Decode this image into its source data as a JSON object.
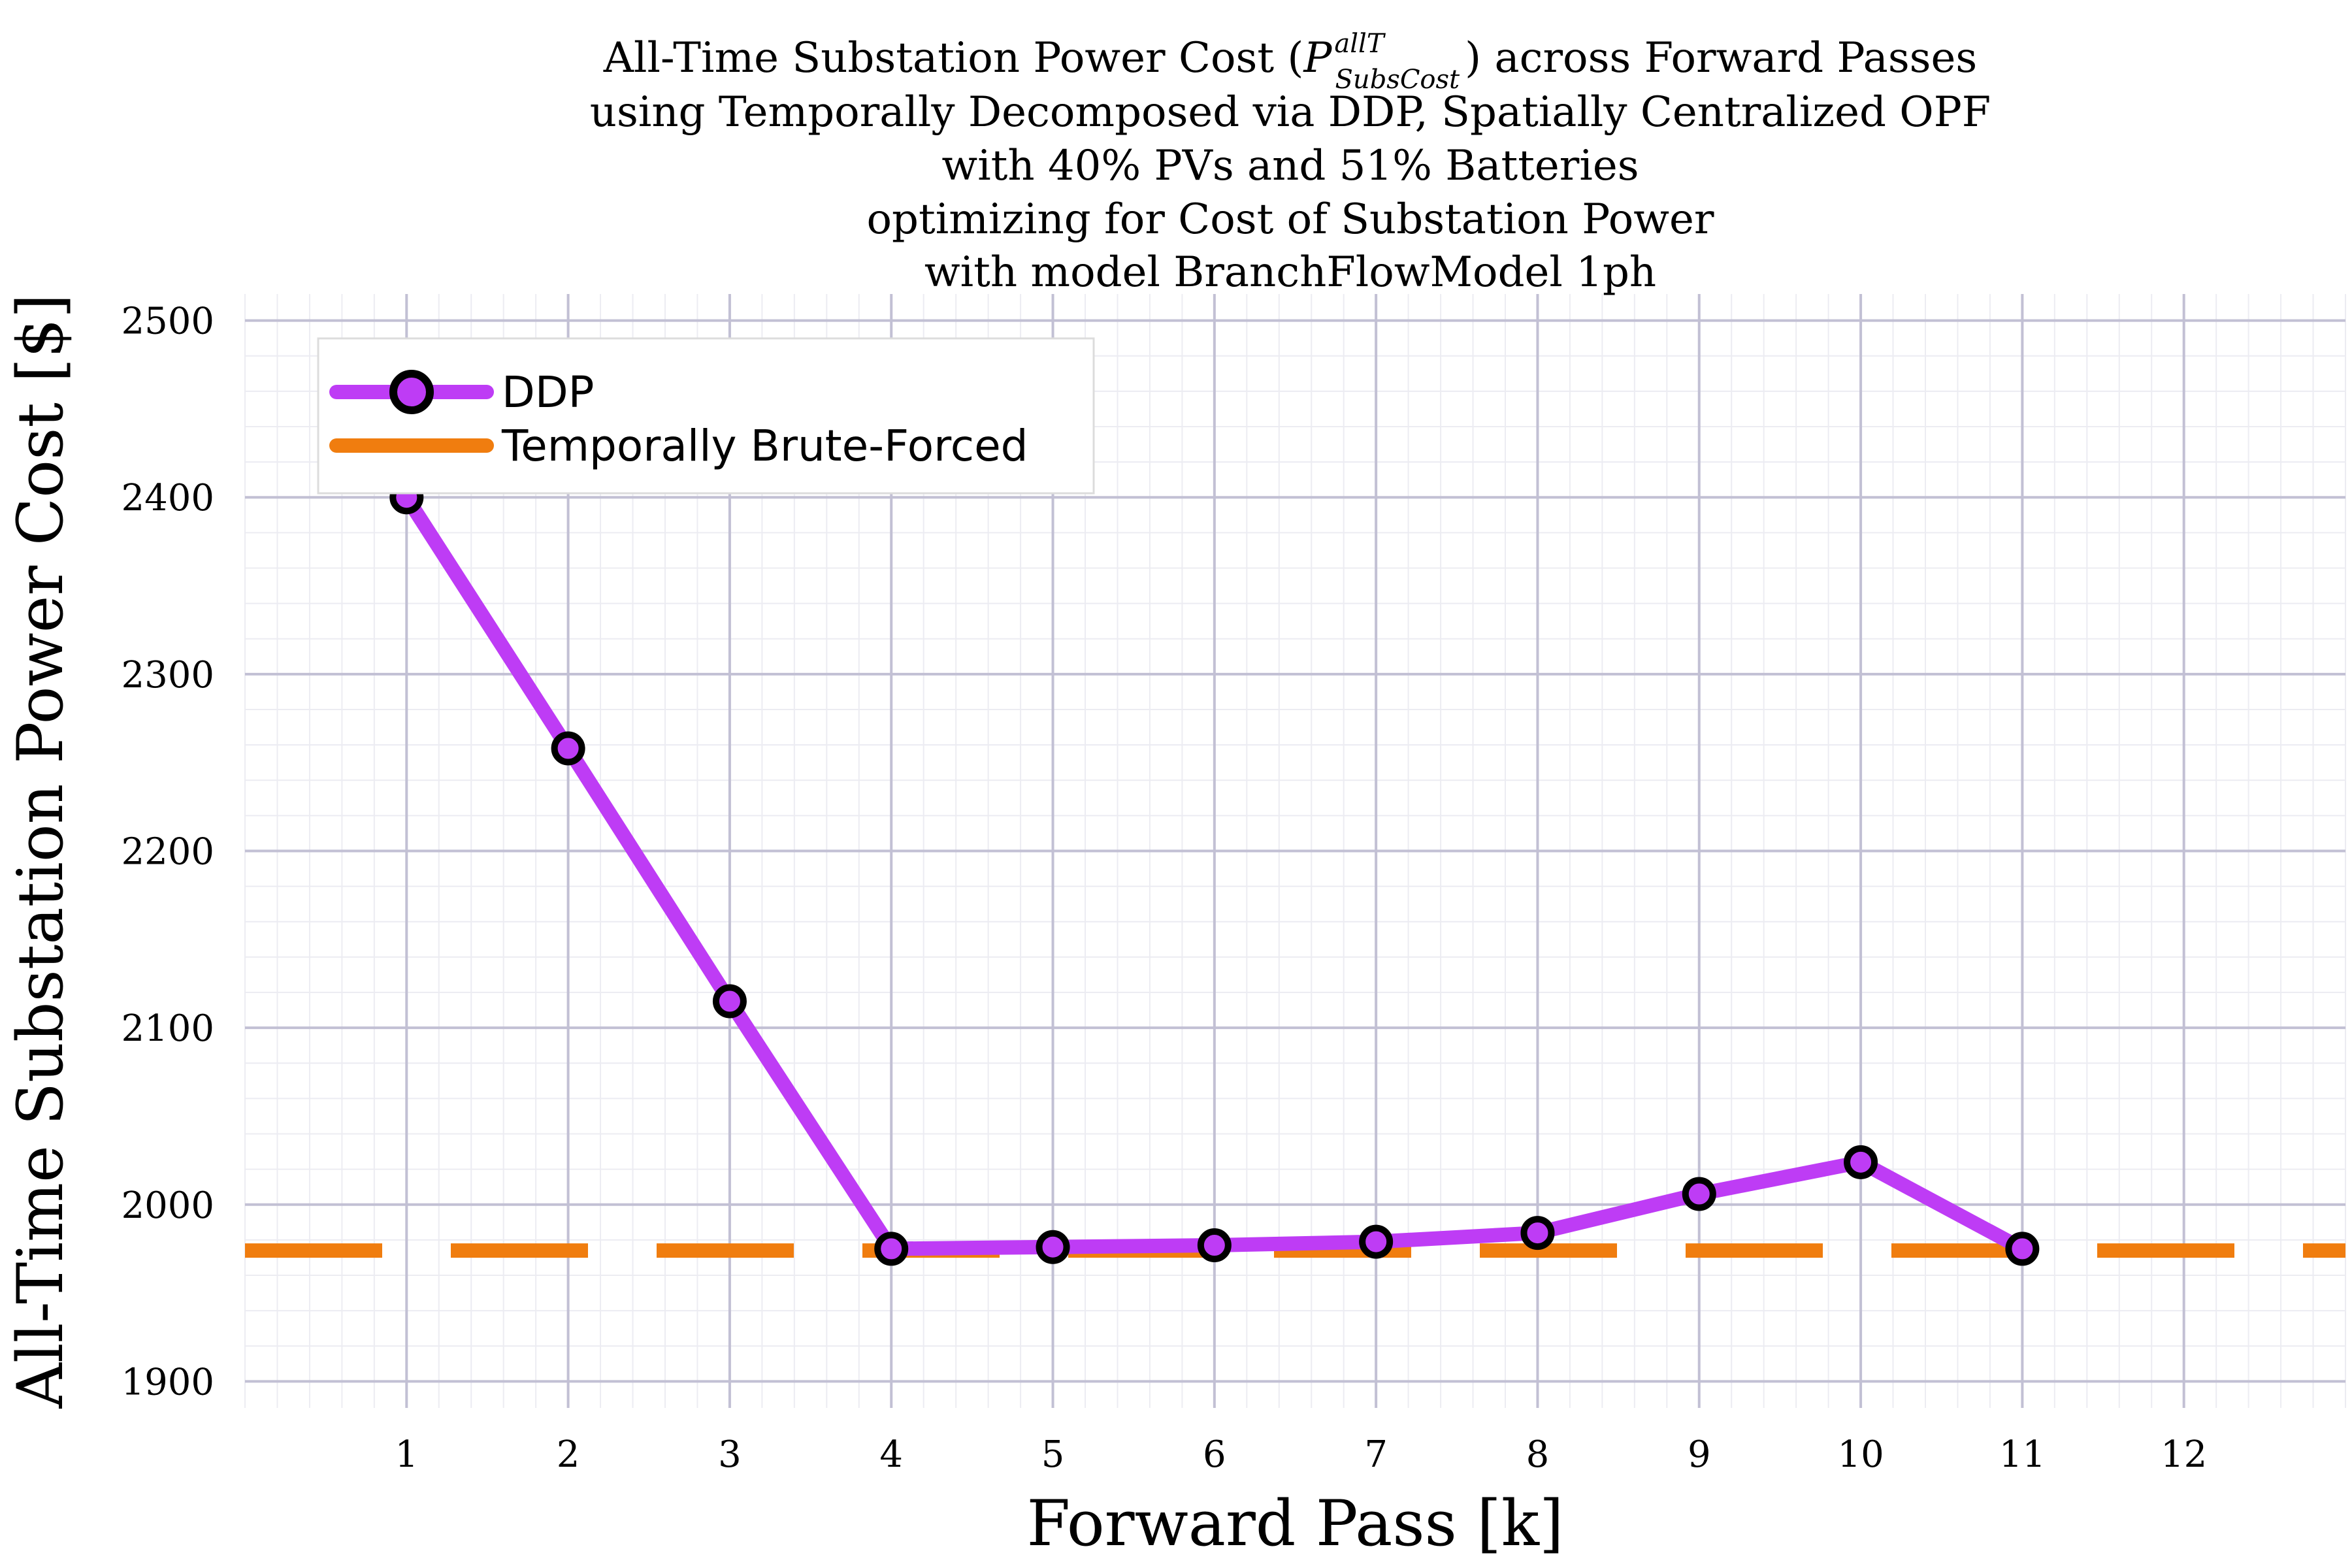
{
  "chart_data": {
    "type": "line",
    "title_lines": [
      "All-Time Substation Power Cost (",
      "using Temporally Decomposed via DDP, Spatially Centralized OPF",
      "with 40% PVs and 51% Batteries",
      "optimizing for Cost of Substation Power",
      "with model BranchFlowModel 1ph"
    ],
    "title_math": {
      "base": "P",
      "superscript": "allT",
      "subscript": "SubsCost",
      "suffix": ") across Forward Passes"
    },
    "xlabel": "Forward Pass [k]",
    "ylabel": "All-Time Substation Power Cost [$]",
    "xlim": [
      0,
      13
    ],
    "ylim": [
      1885,
      2515
    ],
    "x_ticks": [
      1,
      2,
      3,
      4,
      5,
      6,
      7,
      8,
      9,
      10,
      11,
      12
    ],
    "y_ticks": [
      1900,
      2000,
      2100,
      2200,
      2300,
      2400,
      2500
    ],
    "grid": true,
    "legend_position": "top-left",
    "series": [
      {
        "name": "DDP",
        "color": "#be3cf5",
        "marker": "circle",
        "x": [
          1,
          2,
          3,
          4,
          5,
          6,
          7,
          8,
          9,
          10,
          11
        ],
        "y": [
          2400,
          2258,
          2115,
          1975,
          1976,
          1977,
          1979,
          1984,
          2006,
          2024,
          1975
        ]
      },
      {
        "name": "Temporally Brute-Forced",
        "color": "#f07d0f",
        "style": "dashed",
        "y_constant": 1974
      }
    ]
  }
}
